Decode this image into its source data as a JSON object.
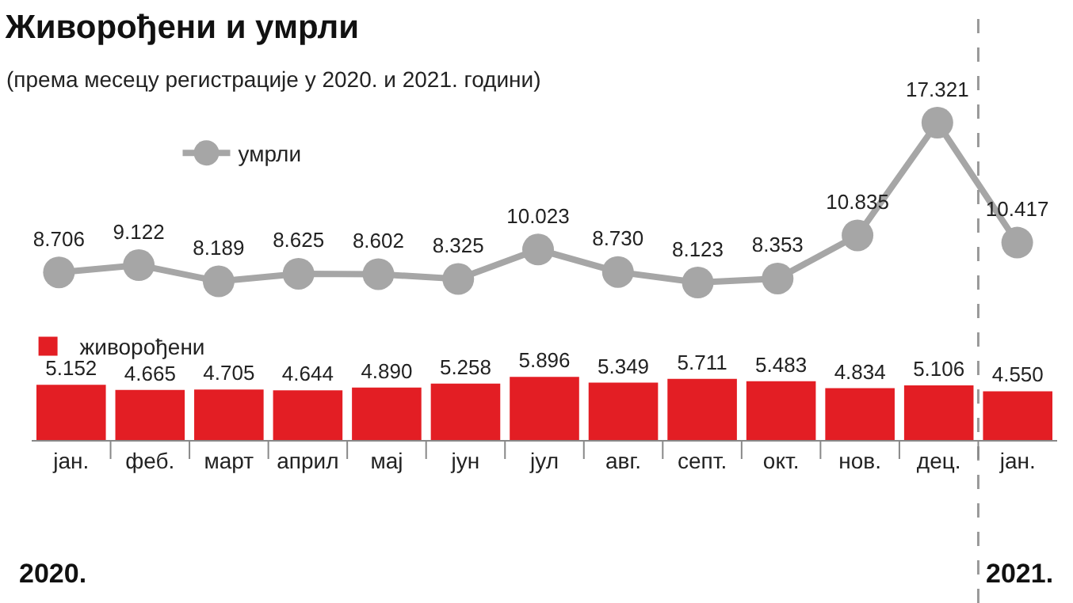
{
  "chart_data": [
    {
      "type": "line",
      "title": "Живорођени и умрли",
      "subtitle": "(према месецу регистрације у 2020. и 2021. години)",
      "categories": [
        null,
        null,
        null,
        null,
        null,
        null,
        null,
        null,
        null,
        null,
        null,
        null,
        null
      ],
      "series": [
        {
          "name": "умрли",
          "color": "#a6a6a6",
          "marker": "circle",
          "values": [
            8706,
            9122,
            8189,
            8625,
            8602,
            8325,
            10023,
            8730,
            8123,
            8353,
            10835,
            17321,
            10417
          ],
          "value_labels": [
            "8.706",
            "9.122",
            "8.189",
            "8.625",
            "8.602",
            "8.325",
            "10.023",
            "8.730",
            "8.123",
            "8.353",
            "10.835",
            "17.321",
            "10.417"
          ]
        }
      ],
      "tick_labels": false,
      "legend": "top left"
    },
    {
      "type": "bar",
      "categories": [
        "јан.",
        "феб.",
        "март",
        "април",
        "мај",
        "јун",
        "јул",
        "авг.",
        "септ.",
        "окт.",
        "нов.",
        "дец.",
        "јан."
      ],
      "series": [
        {
          "name": "живорођени",
          "color": "#e31e24",
          "values": [
            5152,
            4665,
            4705,
            4644,
            4890,
            5258,
            5896,
            5349,
            5711,
            5483,
            4834,
            5106,
            4550
          ],
          "value_labels": [
            "5.152",
            "4.665",
            "4.705",
            "4.644",
            "4.890",
            "5.258",
            "5.896",
            "5.349",
            "5.711",
            "5.483",
            "4.834",
            "5.106",
            "4.550"
          ]
        }
      ],
      "tick_labels": "x",
      "legend": "top left",
      "annotations": [
        "2020.",
        "2021."
      ]
    }
  ]
}
